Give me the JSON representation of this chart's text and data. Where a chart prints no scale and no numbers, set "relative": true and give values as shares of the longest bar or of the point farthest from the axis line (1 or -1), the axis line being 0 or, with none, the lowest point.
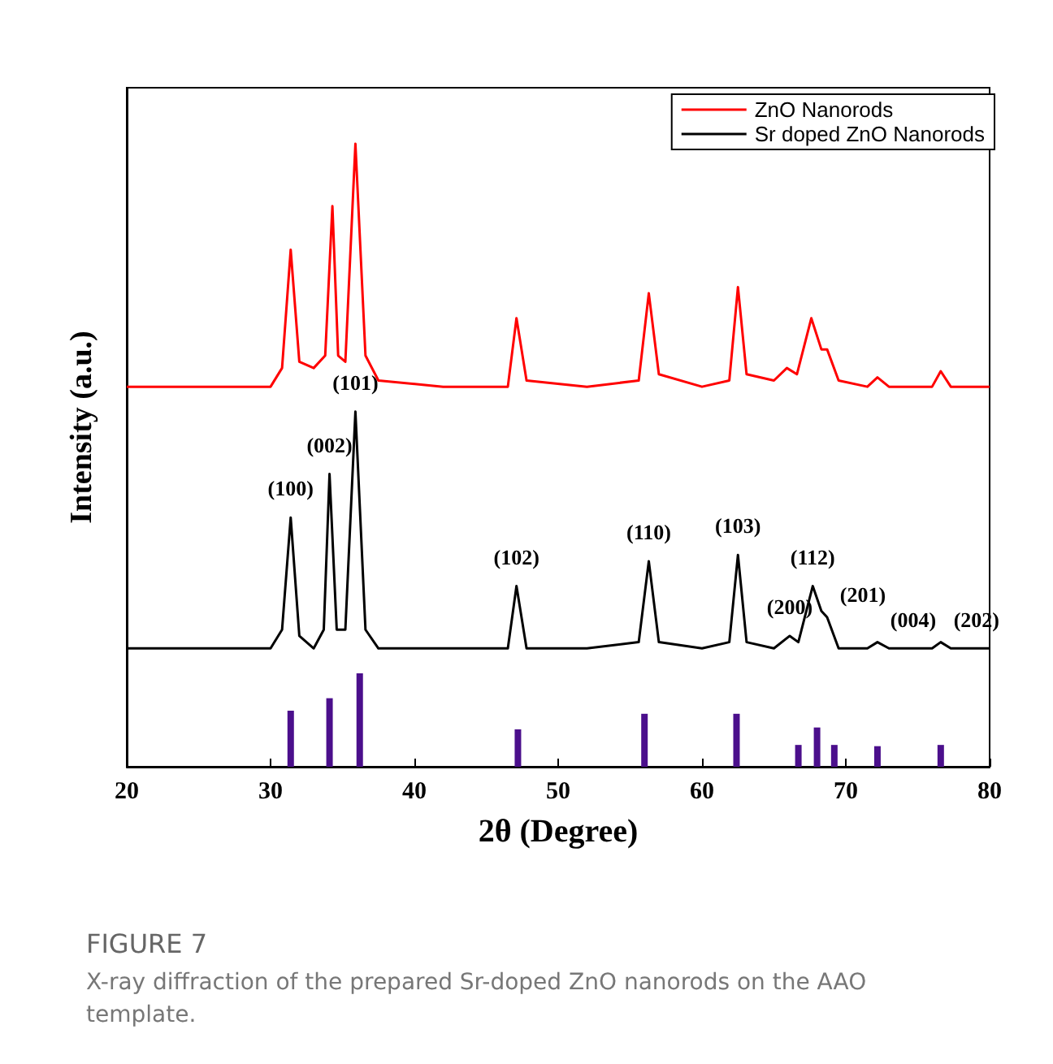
{
  "chart_data": {
    "type": "line",
    "title": "FIGURE 7",
    "subtitle": "X-ray diffraction of the prepared Sr-doped ZnO nanorods on the AAO template.",
    "xlabel": "2θ (Degree)",
    "ylabel": "Intensity (a.u.)",
    "relative": true,
    "xlim": [
      20,
      80
    ],
    "xticks": [
      20,
      30,
      40,
      50,
      60,
      70,
      80
    ],
    "tick_labels": "x",
    "grid": false,
    "legend": "top right",
    "marker": "none",
    "line_style": "solid",
    "series": [
      {
        "name": "ZnO Nanorods",
        "color": "#ff0000",
        "x": [
          20,
          25,
          30,
          30.8,
          31.4,
          32.0,
          33.0,
          33.8,
          34.3,
          34.7,
          35.2,
          35.9,
          36.6,
          37.5,
          42,
          46.5,
          47.1,
          47.8,
          52,
          55.6,
          56.3,
          57.0,
          60,
          61.9,
          62.5,
          63.1,
          65,
          65.9,
          66.6,
          67.6,
          68.3,
          68.7,
          69.5,
          71.5,
          72.2,
          73,
          76,
          76.6,
          77.3,
          80
        ],
        "values": [
          0.61,
          0.61,
          0.61,
          0.64,
          0.83,
          0.65,
          0.64,
          0.66,
          0.9,
          0.66,
          0.65,
          1.0,
          0.66,
          0.62,
          0.61,
          0.61,
          0.72,
          0.62,
          0.61,
          0.62,
          0.76,
          0.63,
          0.61,
          0.62,
          0.77,
          0.63,
          0.62,
          0.64,
          0.63,
          0.72,
          0.67,
          0.67,
          0.62,
          0.61,
          0.625,
          0.61,
          0.61,
          0.635,
          0.61,
          0.61
        ]
      },
      {
        "name": "Sr doped ZnO Nanorods",
        "color": "#000000",
        "x": [
          20,
          25,
          30,
          30.8,
          31.4,
          32.0,
          33.0,
          33.7,
          34.1,
          34.6,
          35.2,
          35.9,
          36.6,
          37.5,
          42,
          46.5,
          47.1,
          47.8,
          52,
          55.6,
          56.3,
          57.0,
          60,
          61.9,
          62.5,
          63.1,
          65,
          66.1,
          66.7,
          67.7,
          68.3,
          68.7,
          69.5,
          71.5,
          72.2,
          73,
          76,
          76.6,
          77.3,
          80
        ],
        "values": [
          0.19,
          0.19,
          0.19,
          0.22,
          0.4,
          0.21,
          0.19,
          0.22,
          0.47,
          0.22,
          0.22,
          0.57,
          0.22,
          0.19,
          0.19,
          0.19,
          0.29,
          0.19,
          0.19,
          0.2,
          0.33,
          0.2,
          0.19,
          0.2,
          0.34,
          0.2,
          0.19,
          0.21,
          0.2,
          0.29,
          0.25,
          0.24,
          0.19,
          0.19,
          0.2,
          0.19,
          0.19,
          0.2,
          0.19,
          0.19
        ]
      },
      {
        "type": "bar",
        "color": "#4b0f8c",
        "x": [
          31.4,
          34.1,
          36.2,
          47.2,
          56.0,
          62.4,
          66.7,
          68.0,
          69.2,
          72.2,
          76.6
        ],
        "values": [
          0.09,
          0.11,
          0.15,
          0.06,
          0.085,
          0.085,
          0.035,
          0.063,
          0.035,
          0.033,
          0.035
        ]
      }
    ],
    "annotations": [
      {
        "text": "(100)",
        "x": 31.4,
        "y": 0.4
      },
      {
        "text": "(002)",
        "x": 34.1,
        "y": 0.47
      },
      {
        "text": "(101)",
        "x": 35.9,
        "y": 0.57
      },
      {
        "text": "(102)",
        "x": 47.1,
        "y": 0.29
      },
      {
        "text": "(110)",
        "x": 56.3,
        "y": 0.33
      },
      {
        "text": "(103)",
        "x": 62.5,
        "y": 0.34
      },
      {
        "text": "(200)",
        "x": 66.1,
        "y": 0.21
      },
      {
        "text": "(112)",
        "x": 67.7,
        "y": 0.29
      },
      {
        "text": "(201)",
        "x": 68.7,
        "y": 0.24
      },
      {
        "text": "(004)",
        "x": 72.2,
        "y": 0.2
      },
      {
        "text": "(202)",
        "x": 76.6,
        "y": 0.2
      }
    ]
  }
}
